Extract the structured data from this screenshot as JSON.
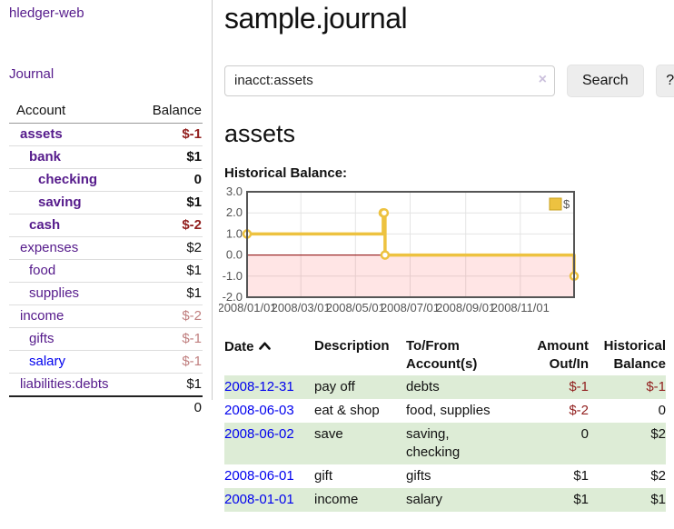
{
  "colors": {
    "purple": "#551a8b",
    "blue": "#0000ee",
    "black": "#111111",
    "negative": "#92201f",
    "negative_muted": "#c07f7f",
    "row_stripe": "#ddecd6",
    "series_gold": "#edc240",
    "zero_line": "#8b0000"
  },
  "sidebar": {
    "app_title": "hledger-web",
    "journal_link": "Journal",
    "table": {
      "headers": {
        "account": "Account",
        "balance": "Balance"
      },
      "rows": [
        {
          "account": "assets",
          "indent": 1,
          "bold": true,
          "link": "purple",
          "balance": "$-1",
          "balance_color": "negative"
        },
        {
          "account": "bank",
          "indent": 2,
          "bold": true,
          "link": "purple",
          "balance": "$1",
          "balance_color": "black"
        },
        {
          "account": "checking",
          "indent": 3,
          "bold": true,
          "link": "purple",
          "balance": "0",
          "balance_color": "black"
        },
        {
          "account": "saving",
          "indent": 3,
          "bold": true,
          "link": "purple",
          "balance": "$1",
          "balance_color": "black"
        },
        {
          "account": "cash",
          "indent": 2,
          "bold": true,
          "link": "purple",
          "balance": "$-2",
          "balance_color": "negative"
        },
        {
          "account": "expenses",
          "indent": 1,
          "bold": false,
          "link": "purple",
          "balance": "$2",
          "balance_color": "black"
        },
        {
          "account": "food",
          "indent": 2,
          "bold": false,
          "link": "purple",
          "balance": "$1",
          "balance_color": "black"
        },
        {
          "account": "supplies",
          "indent": 2,
          "bold": false,
          "link": "purple",
          "balance": "$1",
          "balance_color": "black"
        },
        {
          "account": "income",
          "indent": 1,
          "bold": false,
          "link": "purple",
          "balance": "$-2",
          "balance_color": "negative_muted"
        },
        {
          "account": "gifts",
          "indent": 2,
          "bold": false,
          "link": "purple",
          "balance": "$-1",
          "balance_color": "negative_muted"
        },
        {
          "account": "salary",
          "indent": 2,
          "bold": false,
          "link": "blue",
          "balance": "$-1",
          "balance_color": "negative_muted"
        },
        {
          "account": "liabilities:debts",
          "indent": 1,
          "bold": false,
          "link": "purple",
          "balance": "$1",
          "balance_color": "black"
        }
      ],
      "total": "0"
    }
  },
  "main": {
    "title": "sample.journal",
    "search": {
      "value": "inacct:assets",
      "clear_icon": "×",
      "button": "Search",
      "help_button": "?"
    },
    "account_heading": "assets",
    "chart_label": "Historical Balance:"
  },
  "chart_data": {
    "type": "line",
    "step": true,
    "title": "Historical Balance",
    "xlabel": "",
    "ylabel": "",
    "x_range": [
      "2008-01-01",
      "2008-12-31"
    ],
    "ylim": [
      -2.0,
      3.0
    ],
    "yticks": [
      3.0,
      2.0,
      1.0,
      0.0,
      -1.0,
      -2.0
    ],
    "xticks": [
      {
        "date": "2008-01-01",
        "label": "2008/01/01"
      },
      {
        "date": "2008-03-01",
        "label": "2008/03/01"
      },
      {
        "date": "2008-05-01",
        "label": "2008/05/01"
      },
      {
        "date": "2008-07-01",
        "label": "2008/07/01"
      },
      {
        "date": "2008-09-01",
        "label": "2008/09/01"
      },
      {
        "date": "2008-11-01",
        "label": "2008/11/01"
      }
    ],
    "grid": true,
    "legend_position": "top-right",
    "legend": [
      {
        "label": "$",
        "color": "#edc240"
      }
    ],
    "zero_line": true,
    "negative_region_shaded": true,
    "series": [
      {
        "name": "$",
        "color": "#edc240",
        "points": [
          [
            "2008-01-01",
            1
          ],
          [
            "2008-06-01",
            2
          ],
          [
            "2008-06-02",
            2
          ],
          [
            "2008-06-03",
            0
          ],
          [
            "2008-12-31",
            -1
          ]
        ]
      }
    ]
  },
  "register": {
    "headers": {
      "date": "Date",
      "description": "Description",
      "accounts": "To/From Account(s)",
      "amount": "Amount Out/In",
      "balance": "Historical Balance"
    },
    "rows": [
      {
        "date": "2008-12-31",
        "description": "pay off",
        "accounts": [
          "debts"
        ],
        "amount": "$-1",
        "amount_color": "negative",
        "balance": "$-1",
        "balance_color": "negative",
        "striped": true
      },
      {
        "date": "2008-06-03",
        "description": "eat & shop",
        "accounts": [
          "food, supplies"
        ],
        "amount": "$-2",
        "amount_color": "negative",
        "balance": "0",
        "balance_color": "black",
        "striped": false
      },
      {
        "date": "2008-06-02",
        "description": "save",
        "accounts": [
          "saving,",
          "checking"
        ],
        "amount": "0",
        "amount_color": "black",
        "balance": "$2",
        "balance_color": "black",
        "striped": true
      },
      {
        "date": "2008-06-01",
        "description": "gift",
        "accounts": [
          "gifts"
        ],
        "amount": "$1",
        "amount_color": "black",
        "balance": "$2",
        "balance_color": "black",
        "striped": false
      },
      {
        "date": "2008-01-01",
        "description": "income",
        "accounts": [
          "salary"
        ],
        "amount": "$1",
        "amount_color": "black",
        "balance": "$1",
        "balance_color": "black",
        "striped": true
      }
    ]
  }
}
